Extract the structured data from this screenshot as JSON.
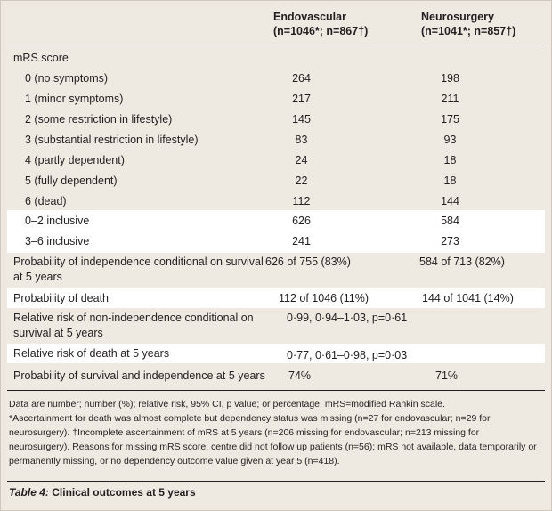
{
  "table": {
    "headers": {
      "col1": [
        "Endovascular",
        "(n=1046*; n=867†)"
      ],
      "col2": [
        "Neurosurgery",
        "(n=1041*; n=857†)"
      ]
    },
    "section_label": "mRS score",
    "rows": [
      {
        "label": "0 (no symptoms)",
        "endovascular": "264",
        "neurosurgery": "198"
      },
      {
        "label": "1 (minor symptoms)",
        "endovascular": "217",
        "neurosurgery": "211"
      },
      {
        "label": "2 (some restriction in lifestyle)",
        "endovascular": "145",
        "neurosurgery": "175"
      },
      {
        "label": "3 (substantial restriction in lifestyle)",
        "endovascular": "83",
        "neurosurgery": "93"
      },
      {
        "label": "4 (partly dependent)",
        "endovascular": "24",
        "neurosurgery": "18"
      },
      {
        "label": "5 (fully dependent)",
        "endovascular": "22",
        "neurosurgery": "18"
      },
      {
        "label": "6 (dead)",
        "endovascular": "112",
        "neurosurgery": "144"
      },
      {
        "label": "0–2 inclusive",
        "endovascular": "626",
        "neurosurgery": "584"
      },
      {
        "label": "3–6 inclusive",
        "endovascular": "241",
        "neurosurgery": "273"
      },
      {
        "label": "Probability of independence conditional on survival at 5 years",
        "endovascular": "626 of 755 (83%)",
        "neurosurgery": "584 of 713 (82%)"
      },
      {
        "label": "Probability of death",
        "endovascular": "112 of 1046 (11%)",
        "neurosurgery": "144 of 1041 (14%)"
      },
      {
        "label": "Relative risk of non-independence conditional on survival at 5 years",
        "combined": "0·99, 0·94–1·03, p=0·61"
      },
      {
        "label": "Relative risk of death at 5 years",
        "combined": "0·77, 0·61–0·98, p=0·03"
      },
      {
        "label": "Probability of survival and independence at 5 years",
        "endovascular": "74%",
        "neurosurgery": "71%"
      }
    ]
  },
  "footnotes": [
    "Data are number; number (%); relative risk, 95% CI, p value; or percentage. mRS=modified Rankin scale.",
    "*Ascertainment for death was almost complete but dependency status was missing (n=27 for endovascular; n=29 for neurosurgery). †Incomplete ascertainment of mRS at 5 years (n=206 missing for endovascular; n=213 missing for neurosurgery). Reasons for missing mRS score: centre did not follow up patients (n=56); mRS not available, data temporarily or permanently missing, or no dependency outcome value given at year 5 (n=418)."
  ],
  "caption": {
    "label": "Table 4:",
    "text": " Clinical outcomes at 5 years"
  },
  "colors": {
    "background": "#eeeae2",
    "highlight_row": "#ffffff",
    "text": "#231f20"
  }
}
